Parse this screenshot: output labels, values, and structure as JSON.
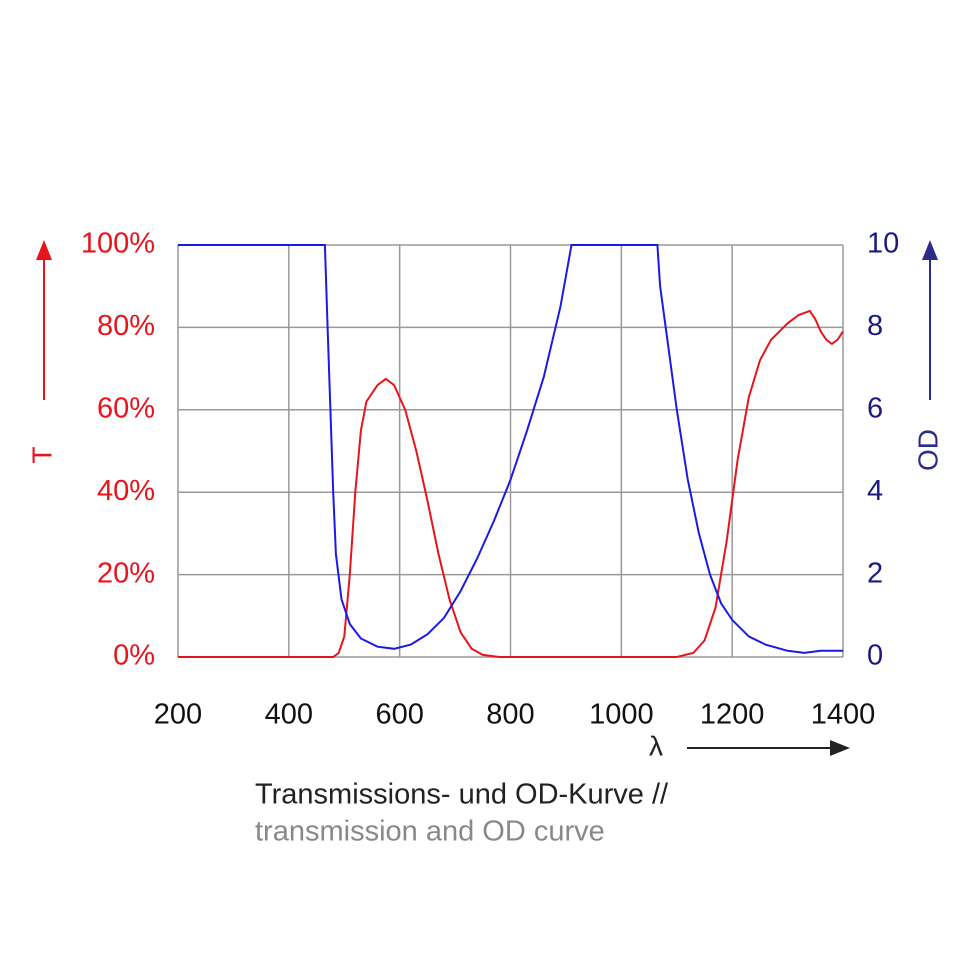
{
  "chart_data": {
    "type": "line",
    "title": "Transmissions- und OD-Kurve //",
    "subtitle": "transmission and OD curve",
    "xlabel": "λ",
    "xlim": [
      200,
      1400
    ],
    "xticks": [
      200,
      400,
      600,
      800,
      1000,
      1200,
      1400
    ],
    "ylim": [
      0,
      100
    ],
    "yticks": [
      {
        "value": 0,
        "label": "0%"
      },
      {
        "value": 20,
        "label": "20%"
      },
      {
        "value": 40,
        "label": "40%"
      },
      {
        "value": 60,
        "label": "60%"
      },
      {
        "value": 80,
        "label": "80%"
      },
      {
        "value": 100,
        "label": "100%"
      }
    ],
    "y2lim": [
      0,
      10
    ],
    "y2ticks": [
      0,
      2,
      4,
      6,
      8,
      10
    ],
    "grid": true,
    "series": [
      {
        "name": "T",
        "color": "#e8141c",
        "axis": "y",
        "x": [
          200,
          480,
          490,
          500,
          510,
          520,
          530,
          540,
          560,
          575,
          590,
          610,
          630,
          650,
          670,
          690,
          710,
          730,
          750,
          780,
          1100,
          1130,
          1150,
          1170,
          1190,
          1210,
          1230,
          1250,
          1270,
          1300,
          1320,
          1340,
          1350,
          1360,
          1370,
          1380,
          1390,
          1400
        ],
        "values": [
          0,
          0,
          1,
          5,
          20,
          40,
          55,
          62,
          66,
          67.5,
          66,
          60,
          50,
          38,
          25,
          14,
          6,
          2,
          0.5,
          0,
          0,
          1,
          4,
          12,
          28,
          48,
          63,
          72,
          77,
          81,
          83,
          84,
          82,
          79,
          77,
          76,
          77,
          79
        ]
      },
      {
        "name": "OD",
        "color": "#1a1ae6",
        "axis": "y2",
        "x": [
          200,
          465,
          470,
          475,
          480,
          485,
          495,
          510,
          530,
          560,
          590,
          620,
          650,
          680,
          710,
          740,
          770,
          800,
          830,
          860,
          890,
          910,
          1065,
          1070,
          1080,
          1100,
          1120,
          1140,
          1160,
          1180,
          1200,
          1230,
          1260,
          1300,
          1330,
          1360,
          1400
        ],
        "values": [
          10,
          10,
          8,
          6,
          4,
          2.5,
          1.4,
          0.8,
          0.45,
          0.25,
          0.2,
          0.3,
          0.55,
          0.95,
          1.6,
          2.4,
          3.3,
          4.3,
          5.5,
          6.8,
          8.5,
          10,
          10,
          9,
          8,
          6,
          4.3,
          3,
          2,
          1.3,
          0.9,
          0.5,
          0.3,
          0.15,
          0.1,
          0.15,
          0.15
        ]
      }
    ]
  }
}
